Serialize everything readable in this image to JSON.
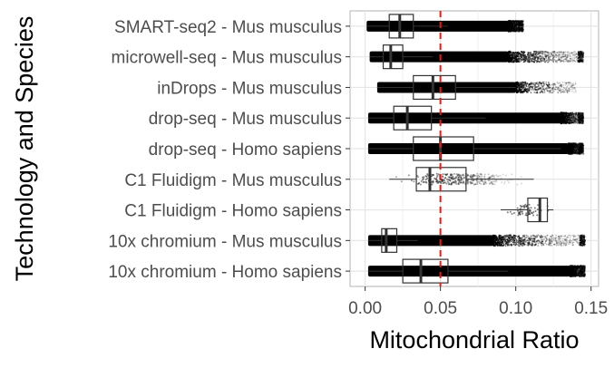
{
  "chart_data": {
    "type": "box",
    "title": "",
    "xlabel": "Mitochondrial Ratio",
    "ylabel": "Technology and Species",
    "xlim": [
      -0.01,
      0.155
    ],
    "xticks": [
      0.0,
      0.05,
      0.1,
      0.15
    ],
    "xtick_labels": [
      "0.00",
      "0.05",
      "0.10",
      "0.15"
    ],
    "reference_line": {
      "x": 0.05,
      "style": "dashed",
      "color": "#e41a1c"
    },
    "grid": true,
    "legend": "none",
    "categories": [
      "SMART-seq2 - Mus musculus",
      "microwell-seq - Mus musculus",
      "inDrops - Mus musculus",
      "drop-seq - Mus musculus",
      "drop-seq - Homo sapiens",
      "C1 Fluidigm - Mus musculus",
      "C1 Fluidigm - Homo sapiens",
      "10x chromium - Mus musculus",
      "10x chromium - Homo sapiens"
    ],
    "boxes": [
      {
        "category": "SMART-seq2 - Mus musculus",
        "q1": 0.016,
        "median": 0.023,
        "q3": 0.032,
        "whisker_low": 0.001,
        "whisker_high": 0.055,
        "points_range": [
          0.001,
          0.105
        ],
        "density": "dense"
      },
      {
        "category": "microwell-seq - Mus musculus",
        "q1": 0.012,
        "median": 0.017,
        "q3": 0.025,
        "whisker_low": 0.003,
        "whisker_high": 0.045,
        "points_range": [
          0.003,
          0.145
        ],
        "density": "dense"
      },
      {
        "category": "inDrops - Mus musculus",
        "q1": 0.032,
        "median": 0.045,
        "q3": 0.06,
        "whisker_low": 0.008,
        "whisker_high": 0.1,
        "points_range": [
          0.008,
          0.14
        ],
        "density": "medium"
      },
      {
        "category": "drop-seq - Mus musculus",
        "q1": 0.019,
        "median": 0.028,
        "q3": 0.044,
        "whisker_low": 0.002,
        "whisker_high": 0.08,
        "points_range": [
          0.002,
          0.145
        ],
        "density": "dense"
      },
      {
        "category": "drop-seq - Homo sapiens",
        "q1": 0.032,
        "median": 0.05,
        "q3": 0.072,
        "whisker_low": 0.002,
        "whisker_high": 0.13,
        "points_range": [
          0.002,
          0.145
        ],
        "density": "dense"
      },
      {
        "category": "C1 Fluidigm - Mus musculus",
        "q1": 0.034,
        "median": 0.043,
        "q3": 0.067,
        "whisker_low": 0.016,
        "whisker_high": 0.112,
        "points_range": [
          0.016,
          0.112
        ],
        "density": "sparse"
      },
      {
        "category": "C1 Fluidigm - Homo sapiens",
        "q1": 0.108,
        "median": 0.116,
        "q3": 0.121,
        "whisker_low": 0.09,
        "whisker_high": 0.125,
        "points_range": [
          0.09,
          0.125
        ],
        "density": "very-sparse"
      },
      {
        "category": "10x chromium - Mus musculus",
        "q1": 0.011,
        "median": 0.014,
        "q3": 0.021,
        "whisker_low": 0.002,
        "whisker_high": 0.035,
        "points_range": [
          0.002,
          0.146
        ],
        "density": "dense"
      },
      {
        "category": "10x chromium - Homo sapiens",
        "q1": 0.025,
        "median": 0.037,
        "q3": 0.055,
        "whisker_low": 0.002,
        "whisker_high": 0.095,
        "points_range": [
          0.002,
          0.146
        ],
        "density": "dense"
      }
    ]
  }
}
